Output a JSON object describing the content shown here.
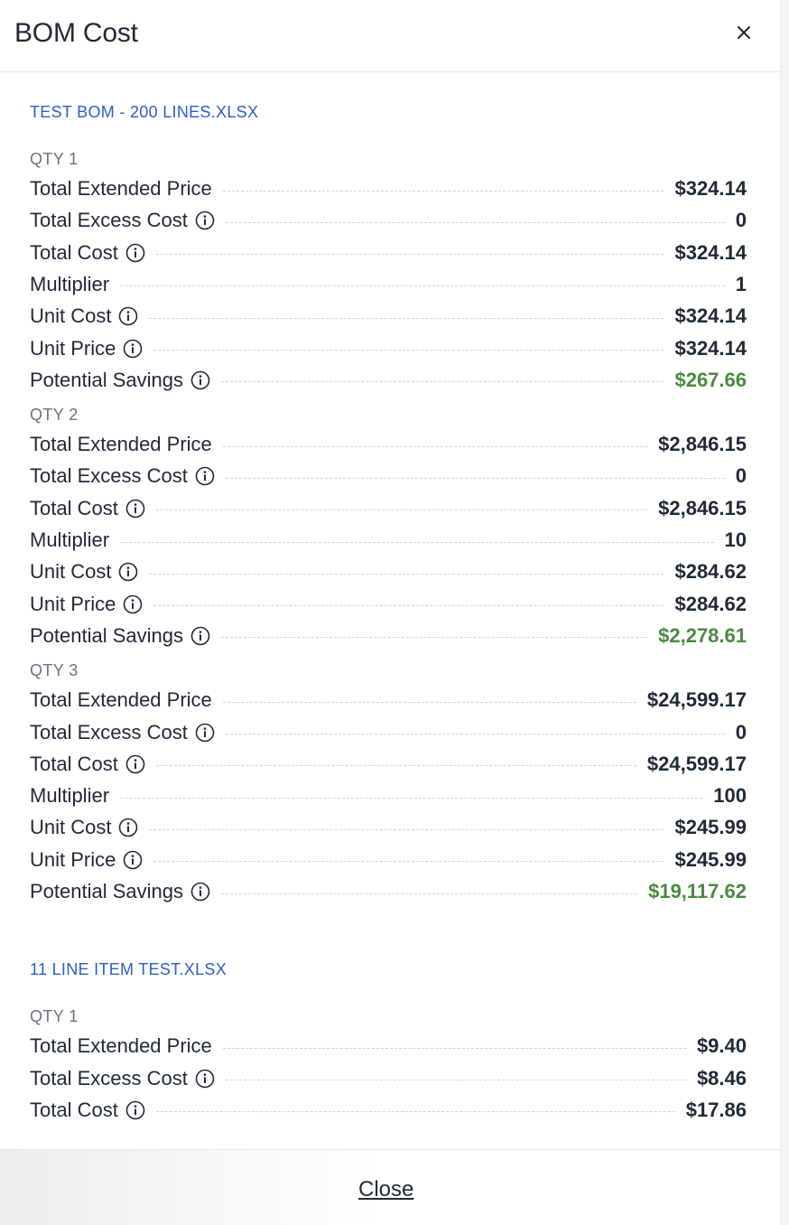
{
  "header": {
    "title": "BOM Cost",
    "close_icon": "close-icon"
  },
  "footer": {
    "close_label": "Close"
  },
  "boms": [
    {
      "file_name": "TEST BOM - 200 LINES.XLSX",
      "quantities": [
        {
          "label": "QTY 1",
          "rows": [
            {
              "label": "Total Extended Price",
              "info": false,
              "value": "$324.14",
              "savings": false
            },
            {
              "label": "Total Excess Cost",
              "info": true,
              "value": "0",
              "savings": false
            },
            {
              "label": "Total Cost",
              "info": true,
              "value": "$324.14",
              "savings": false
            },
            {
              "label": "Multiplier",
              "info": false,
              "value": "1",
              "savings": false
            },
            {
              "label": "Unit Cost",
              "info": true,
              "value": "$324.14",
              "savings": false
            },
            {
              "label": "Unit Price",
              "info": true,
              "value": "$324.14",
              "savings": false
            },
            {
              "label": "Potential Savings",
              "info": true,
              "value": "$267.66",
              "savings": true
            }
          ]
        },
        {
          "label": "QTY 2",
          "rows": [
            {
              "label": "Total Extended Price",
              "info": false,
              "value": "$2,846.15",
              "savings": false
            },
            {
              "label": "Total Excess Cost",
              "info": true,
              "value": "0",
              "savings": false
            },
            {
              "label": "Total Cost",
              "info": true,
              "value": "$2,846.15",
              "savings": false
            },
            {
              "label": "Multiplier",
              "info": false,
              "value": "10",
              "savings": false
            },
            {
              "label": "Unit Cost",
              "info": true,
              "value": "$284.62",
              "savings": false
            },
            {
              "label": "Unit Price",
              "info": true,
              "value": "$284.62",
              "savings": false
            },
            {
              "label": "Potential Savings",
              "info": true,
              "value": "$2,278.61",
              "savings": true
            }
          ]
        },
        {
          "label": "QTY 3",
          "rows": [
            {
              "label": "Total Extended Price",
              "info": false,
              "value": "$24,599.17",
              "savings": false
            },
            {
              "label": "Total Excess Cost",
              "info": true,
              "value": "0",
              "savings": false
            },
            {
              "label": "Total Cost",
              "info": true,
              "value": "$24,599.17",
              "savings": false
            },
            {
              "label": "Multiplier",
              "info": false,
              "value": "100",
              "savings": false
            },
            {
              "label": "Unit Cost",
              "info": true,
              "value": "$245.99",
              "savings": false
            },
            {
              "label": "Unit Price",
              "info": true,
              "value": "$245.99",
              "savings": false
            },
            {
              "label": "Potential Savings",
              "info": true,
              "value": "$19,117.62",
              "savings": true
            }
          ]
        }
      ]
    },
    {
      "file_name": "11 LINE ITEM TEST.XLSX",
      "quantities": [
        {
          "label": "QTY 1",
          "rows": [
            {
              "label": "Total Extended Price",
              "info": false,
              "value": "$9.40",
              "savings": false
            },
            {
              "label": "Total Excess Cost",
              "info": true,
              "value": "$8.46",
              "savings": false
            },
            {
              "label": "Total Cost",
              "info": true,
              "value": "$17.86",
              "savings": false
            }
          ]
        }
      ]
    }
  ],
  "colors": {
    "file_title": "#2b5fc7",
    "savings": "#4a8a3f",
    "qty_label": "#6b7280",
    "text": "#1f2937"
  },
  "icons": {
    "info": "info-circle-icon"
  }
}
